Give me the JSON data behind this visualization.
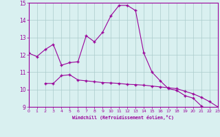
{
  "xlabel": "Windchill (Refroidissement éolien,°C)",
  "x_values": [
    0,
    1,
    2,
    3,
    4,
    5,
    6,
    7,
    8,
    9,
    10,
    11,
    12,
    13,
    14,
    15,
    16,
    17,
    18,
    19,
    20,
    21,
    22,
    23
  ],
  "line1_y": [
    12.1,
    11.9,
    12.3,
    12.6,
    11.4,
    11.55,
    11.6,
    13.1,
    12.75,
    13.3,
    14.25,
    14.85,
    14.85,
    14.55,
    12.1,
    11.0,
    10.5,
    10.05,
    9.95,
    9.65,
    9.5,
    9.05,
    null,
    null
  ],
  "line2_y": [
    null,
    null,
    10.35,
    10.35,
    10.8,
    10.85,
    10.55,
    10.5,
    10.45,
    10.4,
    10.38,
    10.35,
    10.3,
    10.28,
    10.25,
    10.2,
    10.15,
    10.1,
    10.05,
    9.9,
    9.75,
    9.55,
    9.3,
    9.0
  ],
  "line_color": "#990099",
  "bg_color": "#d9f0f0",
  "grid_color": "#aacccc",
  "ylim": [
    9,
    15
  ],
  "xlim": [
    0,
    23
  ],
  "yticks": [
    9,
    10,
    11,
    12,
    13,
    14,
    15
  ],
  "xticks": [
    0,
    1,
    2,
    3,
    4,
    5,
    6,
    7,
    8,
    9,
    10,
    11,
    12,
    13,
    14,
    15,
    16,
    17,
    18,
    19,
    20,
    21,
    22,
    23
  ]
}
